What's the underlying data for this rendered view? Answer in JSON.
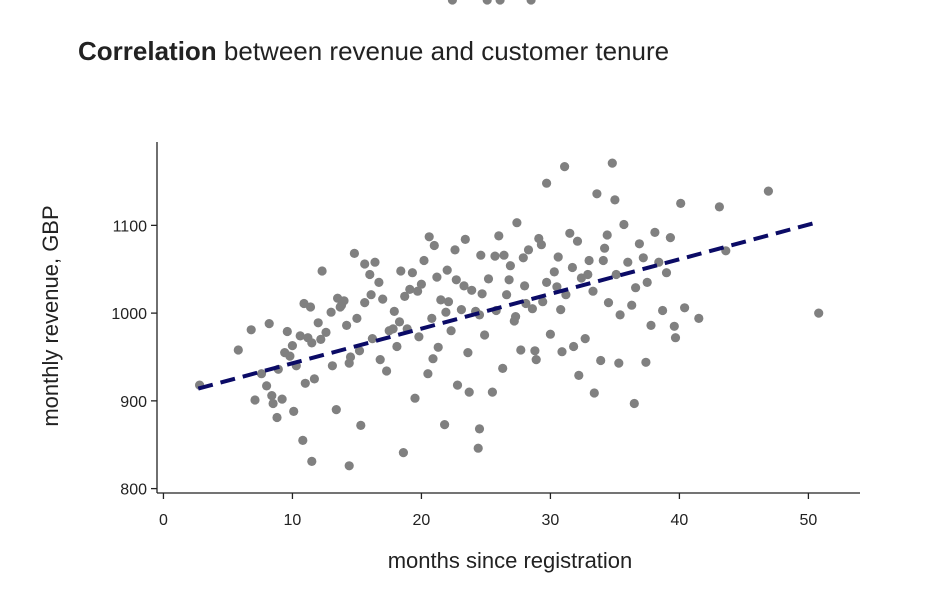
{
  "chart_data": {
    "type": "scatter",
    "title_bold": "Correlation",
    "title_rest": " between revenue and customer tenure",
    "xlabel": "months since registration",
    "ylabel": "monthly revenue, GBP",
    "xlim": [
      -0.5,
      54
    ],
    "ylim": [
      795,
      1195
    ],
    "xticks": [
      0,
      10,
      20,
      30,
      40,
      50
    ],
    "yticks": [
      800,
      900,
      1000,
      1100
    ],
    "grid": false,
    "legend": "none",
    "point_color": "#808080",
    "trend_color": "#0b0b66",
    "trendline": {
      "x": [
        2.7,
        50.8
      ],
      "y": [
        914,
        1104
      ],
      "style": "dashed"
    },
    "points_x": [
      2.8,
      5.8,
      6.8,
      7.1,
      7.6,
      8.0,
      8.2,
      8.4,
      8.5,
      8.8,
      8.9,
      9.2,
      9.6,
      9.8,
      10.0,
      10.1,
      10.3,
      10.6,
      10.8,
      11.2,
      11.4,
      11.5,
      11.7,
      12.0,
      12.3,
      12.6,
      13.0,
      13.1,
      13.4,
      13.8,
      14.0,
      14.2,
      14.4,
      14.5,
      14.8,
      15.0,
      15.3,
      15.6,
      16.0,
      16.2,
      16.4,
      16.8,
      17.0,
      17.3,
      17.5,
      17.9,
      18.1,
      18.4,
      18.6,
      18.9,
      19.1,
      19.5,
      19.8,
      20.0,
      20.2,
      20.5,
      20.8,
      21.0,
      21.3,
      21.5,
      21.8,
      22.0,
      22.3,
      22.6,
      22.8,
      23.1,
      23.4,
      23.6,
      23.9,
      24.2,
      24.4,
      24.6,
      24.9,
      25.2,
      25.5,
      25.8,
      26.0,
      26.3,
      26.6,
      26.9,
      27.2,
      27.4,
      27.7,
      28.0,
      28.3,
      28.6,
      28.9,
      29.1,
      29.4,
      29.7,
      30.0,
      30.3,
      30.6,
      30.9,
      31.2,
      31.5,
      31.8,
      32.1,
      32.4,
      32.7,
      33.0,
      33.3,
      33.6,
      33.9,
      34.2,
      34.5,
      34.8,
      35.1,
      35.4,
      35.7,
      36.0,
      36.3,
      36.6,
      36.9,
      37.2,
      37.5,
      37.8,
      38.1,
      38.4,
      38.7,
      39.0,
      39.3,
      39.7,
      40.1,
      40.4,
      41.5,
      43.1,
      43.6,
      46.9,
      50.8,
      12.2,
      13.5,
      15.2,
      16.7,
      18.3,
      19.7,
      20.9,
      22.1,
      23.3,
      24.5,
      25.7,
      26.8,
      28.1,
      29.3,
      30.5,
      31.7,
      32.9,
      34.1,
      35.3,
      36.5,
      9.4,
      11.0,
      13.7,
      17.8,
      21.2,
      24.7,
      27.9,
      31.1,
      34.4,
      35.0,
      29.7,
      24.5,
      18.7,
      14.4,
      11.5,
      10.9,
      20.6,
      22.7,
      26.4,
      28.8,
      33.4,
      37.4,
      39.6,
      16.1,
      19.3,
      23.7,
      27.3,
      30.8,
      32.2,
      15.6,
      21.9,
      25.1,
      28.5,
      22.4,
      26.1
    ],
    "points_y": [
      918,
      958,
      981,
      901,
      931,
      917,
      988,
      906,
      897,
      881,
      936,
      902,
      979,
      951,
      963,
      888,
      940,
      974,
      855,
      972,
      1007,
      831,
      925,
      989,
      1048,
      978,
      1001,
      940,
      890,
      1009,
      1014,
      986,
      826,
      950,
      1068,
      994,
      872,
      1012,
      1044,
      971,
      1058,
      947,
      1016,
      934,
      980,
      1002,
      962,
      1048,
      841,
      982,
      1027,
      903,
      973,
      1033,
      1060,
      931,
      994,
      1077,
      961,
      1015,
      873,
      1049,
      980,
      1072,
      918,
      1004,
      1084,
      955,
      1026,
      1002,
      846,
      1066,
      975,
      1039,
      910,
      1003,
      1088,
      937,
      1021,
      1054,
      991,
      1103,
      958,
      1031,
      1072,
      1005,
      947,
      1085,
      1013,
      1148,
      976,
      1047,
      1064,
      956,
      1021,
      1091,
      962,
      1082,
      1040,
      971,
      1060,
      1025,
      1136,
      946,
      1074,
      1012,
      1171,
      1044,
      998,
      1101,
      1058,
      1009,
      1029,
      1079,
      1063,
      1035,
      986,
      1092,
      1058,
      1003,
      1046,
      1086,
      972,
      1125,
      1006,
      994,
      1121,
      1071,
      1139,
      1000,
      970,
      1017,
      957,
      1035,
      990,
      1025,
      948,
      1013,
      1031,
      998,
      1065,
      1038,
      1011,
      1078,
      1030,
      1052,
      1044,
      1060,
      943,
      897,
      955,
      920,
      1007,
      982,
      1041,
      1022,
      1063,
      1167,
      1089,
      1129,
      1035,
      868,
      1019,
      943,
      966,
      1011,
      1087,
      1038,
      1066,
      957,
      909,
      944,
      985,
      1021,
      1046,
      910,
      996,
      1004,
      929,
      1056,
      1001
    ],
    "point_radius": 4.6
  }
}
